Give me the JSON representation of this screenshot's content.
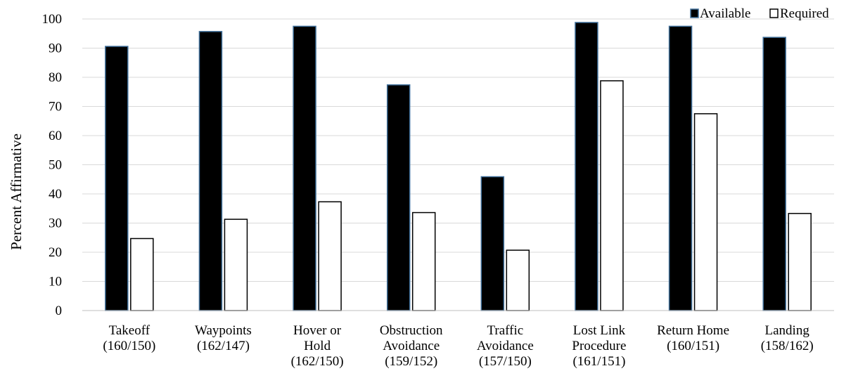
{
  "chart_data": {
    "type": "bar",
    "title": "",
    "xlabel": "",
    "ylabel": "Percent Affirmative",
    "ylim": [
      0,
      100
    ],
    "yticks": [
      0,
      10,
      20,
      30,
      40,
      50,
      60,
      70,
      80,
      90,
      100
    ],
    "grid": true,
    "legend_position": "top-right",
    "categories": [
      [
        "Takeoff",
        "(160/150)"
      ],
      [
        "Waypoints",
        "(162/147)"
      ],
      [
        "Hover or",
        "Hold",
        "(162/150)"
      ],
      [
        "Obstruction",
        "Avoidance",
        "(159/152)"
      ],
      [
        "Traffic",
        "Avoidance",
        "(157/150)"
      ],
      [
        "Lost Link",
        "Procedure",
        "(161/151)"
      ],
      [
        "Return Home",
        "(160/151)"
      ],
      [
        "Landing",
        "(158/162)"
      ]
    ],
    "series": [
      {
        "name": "Available",
        "color": "#000000",
        "stroke": "#41719c",
        "values": [
          90.6,
          95.7,
          97.5,
          77.4,
          45.9,
          98.8,
          97.5,
          93.7
        ]
      },
      {
        "name": "Required",
        "color": "#ffffff",
        "stroke": "#000000",
        "values": [
          24.7,
          31.3,
          37.3,
          33.6,
          20.7,
          78.8,
          67.5,
          33.3
        ]
      }
    ]
  }
}
